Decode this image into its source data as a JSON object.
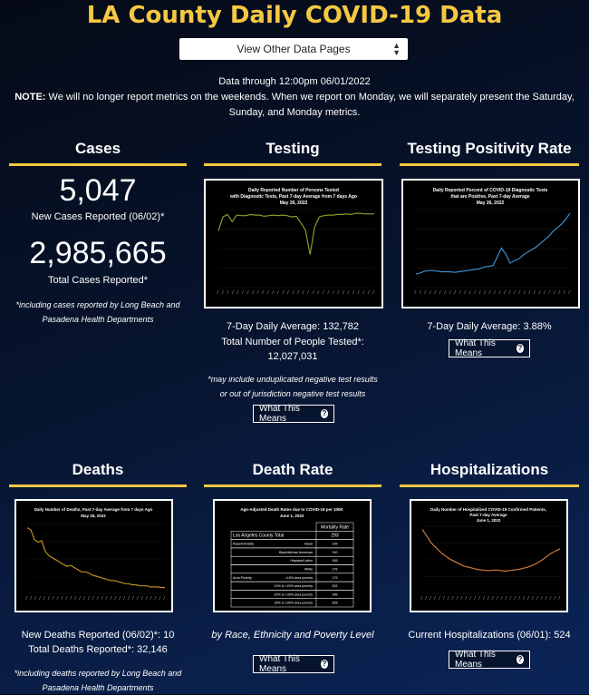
{
  "page_title": "LA County Daily COVID-19 Data",
  "selector": {
    "label": "View Other Data Pages"
  },
  "info": {
    "data_through": "Data through 12:00pm 06/01/2022",
    "note_label": "NOTE:",
    "note_text": " We will no longer report metrics on the weekends. When we report on Monday, we will separately present the Saturday, Sunday, and Monday metrics."
  },
  "cases": {
    "title": "Cases",
    "new_value": "5,047",
    "new_label": "New Cases Reported (06/02)*",
    "total_value": "2,985,665",
    "total_label": "Total Cases Reported*",
    "footnote": "*including cases reported by Long Beach and Pasadena Health Departments"
  },
  "testing": {
    "title": "Testing",
    "chart_title_1": "Daily Reported Number of Persons Tested",
    "chart_title_2": "with Diagnostic Tests, Past 7-day Average from 7 days Ago",
    "chart_title_3": "May 26, 2022",
    "avg": "7-Day Daily Average: 132,782",
    "total": "Total Number of People Tested*: 12,027,031",
    "footnote": "*may include unduplicated negative test results or out of jurisdiction negative test results",
    "button": "What This Means"
  },
  "positivity": {
    "title": "Testing Positivity Rate",
    "chart_title_1": "Daily Reported Percent of COVID-19 Diagnostic Tests",
    "chart_title_2": "that are Positive, Past 7-day Average",
    "chart_title_3": "May 26, 2022",
    "avg": "7-Day Daily Average: 3.88%",
    "button": "What This Means"
  },
  "deaths": {
    "title": "Deaths",
    "chart_title_1": "Daily Number of Deaths, Past 7-day Average from 7 days Ago",
    "chart_title_2": "May 26, 2022",
    "new": "New Deaths Reported (06/02)*: 10",
    "total": "Total Deaths Reported*: 32,146",
    "footnote": "*including deaths reported by Long Beach and Pasadena Health Departments"
  },
  "death_rate": {
    "title": "Death Rate",
    "chart_title_1": "Age-Adjusted Death Rates due to COVID-19 per 100K",
    "chart_title_2": "June 1, 2022",
    "table_header": "Mortality Rate",
    "rows": [
      {
        "group": "Los Angeles County Total",
        "sub": "",
        "value": "293"
      },
      {
        "group": "Race/Ethnicity",
        "sub": "Asian",
        "value": "195"
      },
      {
        "group": "",
        "sub": "Black/African American",
        "value": "310"
      },
      {
        "group": "",
        "sub": "Hispanic/Latino",
        "value": "436"
      },
      {
        "group": "",
        "sub": "White",
        "value": "176"
      },
      {
        "group": "Area Poverty",
        "sub": "<10% area poverty",
        "value": "179"
      },
      {
        "group": "",
        "sub": "10% to <20% area poverty",
        "value": "302"
      },
      {
        "group": "",
        "sub": "20% to <30% area poverty",
        "value": "395"
      },
      {
        "group": "",
        "sub": "30% to 100% area poverty",
        "value": "539"
      }
    ],
    "caption": "by Race, Ethnicity and Poverty Level",
    "button": "What This Means"
  },
  "hosp": {
    "title": "Hospitalizations",
    "chart_title_1": "Daily Number of Hospitalized COVID-19 Confirmed Patients,",
    "chart_title_2": "Past 7-day Average",
    "chart_title_3": "June 1, 2022",
    "current": "Current Hospitalizations (06/01): 524",
    "button": "What This Means"
  },
  "colors": {
    "accent": "#f5c842",
    "testing_line": "#8a9a2a",
    "positivity_line": "#3a8fd0",
    "deaths_line": "#b8901e",
    "hosp_line": "#d07a3a"
  },
  "chart_data": [
    {
      "type": "line",
      "series": [
        {
          "values": [
            95,
            118,
            122,
            110,
            121,
            120,
            120,
            122,
            121,
            121,
            119,
            120,
            121,
            120,
            121,
            120,
            118,
            119,
            108,
            96,
            55,
            101,
            118,
            120,
            121,
            121,
            122,
            122,
            123,
            122,
            124,
            124,
            123,
            123,
            123
          ]
        }
      ]
    },
    {
      "type": "line",
      "series": [
        {
          "values": [
            22,
            24,
            27,
            28,
            28,
            27,
            26,
            26,
            26,
            25,
            26,
            27,
            28,
            29,
            30,
            31,
            34,
            35,
            36,
            50,
            65,
            55,
            40,
            44,
            47,
            53,
            58,
            62,
            66,
            72,
            78,
            84,
            92,
            98,
            104,
            112,
            122
          ]
        }
      ]
    },
    {
      "type": "line",
      "series": [
        {
          "values": [
            122,
            118,
            100,
            95,
            98,
            78,
            70,
            66,
            62,
            58,
            54,
            50,
            52,
            48,
            44,
            40,
            40,
            38,
            34,
            32,
            30,
            28,
            26,
            24,
            24,
            22,
            20,
            18,
            18,
            16,
            16,
            14,
            14,
            14,
            12,
            12,
            12,
            11,
            11
          ]
        }
      ]
    },
    {
      "type": "line",
      "series": [
        {
          "values": [
            112,
            100,
            88,
            80,
            72,
            66,
            60,
            56,
            52,
            48,
            46,
            44,
            42,
            41,
            40,
            40,
            41,
            40,
            39,
            40,
            41,
            42,
            44,
            46,
            49,
            53,
            58,
            64,
            70,
            74,
            78
          ]
        }
      ]
    }
  ]
}
